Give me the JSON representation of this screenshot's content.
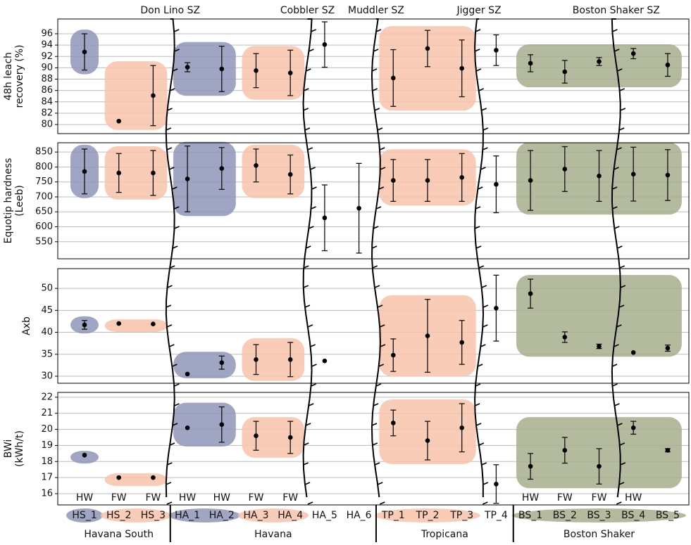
{
  "chart_data": [
    {
      "type": "errorbar",
      "ylabel": [
        "48h leach",
        "recovery (%)"
      ],
      "values": [
        92.8,
        80.6,
        85.1,
        90.1,
        89.8,
        89.5,
        89.1,
        94.1,
        null,
        88.2,
        93.4,
        89.9,
        93.1,
        90.8,
        89.3,
        91.1,
        92.5,
        90.5
      ],
      "errors": [
        3.2,
        null,
        5.3,
        0.8,
        4,
        3,
        4,
        4,
        null,
        5,
        3.2,
        5,
        2.7,
        1.5,
        2,
        0.7,
        0.9,
        2
      ],
      "ylim": [
        78.4,
        98.6
      ],
      "yticks": [
        80,
        82,
        84,
        86,
        88,
        90,
        92,
        94,
        96
      ],
      "grid": true
    },
    {
      "type": "errorbar",
      "ylabel": [
        "Equotip hardness",
        "(Leeb)"
      ],
      "values": [
        785,
        780,
        780,
        760,
        795,
        805,
        775,
        630,
        662,
        755,
        755,
        765,
        742,
        755,
        793,
        770,
        776,
        773
      ],
      "errors": [
        75,
        65,
        75,
        110,
        70,
        55,
        65,
        110,
        150,
        70,
        70,
        80,
        95,
        100,
        75,
        85,
        90,
        85
      ],
      "ylim": [
        493,
        881
      ],
      "yticks": [
        550,
        600,
        650,
        700,
        750,
        800,
        850
      ],
      "grid": true
    },
    {
      "type": "errorbar",
      "ylabel": [
        "Axb"
      ],
      "values": [
        41.7,
        42.0,
        41.9,
        30.5,
        33.1,
        33.8,
        33.8,
        33.5,
        null,
        34.8,
        39.2,
        37.7,
        45.5,
        48.8,
        38.9,
        36.8,
        35.4,
        36.4
      ],
      "errors": [
        1,
        null,
        null,
        null,
        1.5,
        3.4,
        3.9,
        null,
        null,
        3.7,
        8.3,
        5,
        7.5,
        3.3,
        1.2,
        0.5,
        null,
        0.7
      ],
      "ylim": [
        28.4,
        54.5
      ],
      "yticks": [
        30,
        35,
        40,
        45,
        50
      ],
      "grid": true
    },
    {
      "type": "errorbar",
      "ylabel": [
        "BWi",
        "(kWh/t)"
      ],
      "categories": [
        "HS_1",
        "HS_2",
        "HS_3",
        "HA_1",
        "HA_2",
        "HA_3",
        "HA_4",
        "HA_5",
        "HA_6",
        "TP_1",
        "TP_2",
        "TP_3",
        "TP_4",
        "BS_1",
        "BS_2",
        "BS_3",
        "BS_4",
        "BS_5"
      ],
      "annotations": [
        "HW",
        "FW",
        "FW",
        "HW",
        "HW",
        "FW",
        "FW",
        null,
        null,
        null,
        null,
        null,
        null,
        "HW",
        "FW",
        "FW",
        "HW",
        null
      ],
      "values": [
        18.4,
        17.0,
        17.0,
        20.1,
        20.3,
        19.6,
        19.5,
        null,
        null,
        20.4,
        19.3,
        20.1,
        16.6,
        17.7,
        18.7,
        17.7,
        20.1,
        18.7
      ],
      "errors": [
        null,
        null,
        null,
        null,
        1.1,
        0.9,
        1.0,
        null,
        null,
        0.8,
        1.2,
        1.5,
        1.2,
        0.8,
        0.8,
        1.1,
        0.4,
        0.1
      ],
      "ylim": [
        15.3,
        22.3
      ],
      "yticks": [
        16,
        17,
        18,
        19,
        20,
        21,
        22
      ],
      "grid": true
    }
  ],
  "category_colors": [
    "#8e95b8",
    "#f8c3ab",
    "#f8c3ab",
    "#8e95b8",
    "#8e95b8",
    "#f8c3ab",
    "#f8c3ab",
    null,
    null,
    "#f8c3ab",
    "#f8c3ab",
    "#f8c3ab",
    null,
    "#a6ae8c",
    "#a6ae8c",
    "#a6ae8c",
    "#a6ae8c",
    "#a6ae8c"
  ],
  "shear_zones": [
    "Don Lino SZ",
    "Cobbler SZ",
    "Muddler SZ",
    "Jigger SZ",
    "Boston Shaker SZ"
  ],
  "groups": [
    "Havana South",
    "Havana",
    "Tropicana",
    "Boston Shaker"
  ]
}
